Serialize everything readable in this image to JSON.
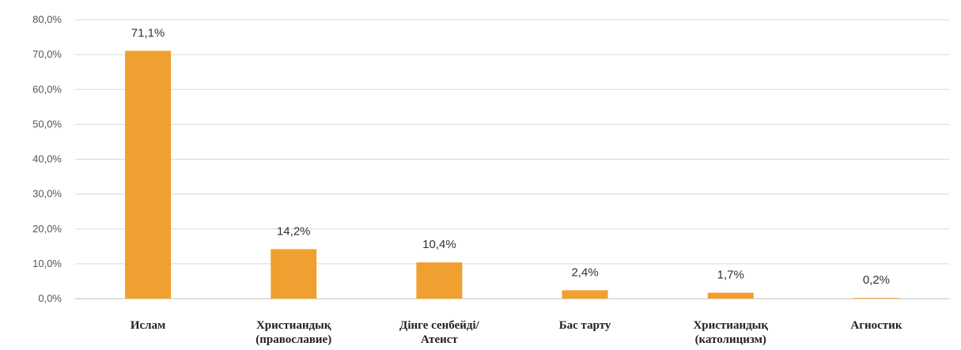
{
  "chart_data": {
    "type": "bar",
    "categories": [
      [
        "Ислам"
      ],
      [
        "Христиандық",
        "(православие)"
      ],
      [
        "Дінге сенбейді/",
        "Атеист"
      ],
      [
        "Бас тарту"
      ],
      [
        "Христиандық",
        "(католицизм)"
      ],
      [
        "Агностик"
      ]
    ],
    "values": [
      71.1,
      14.2,
      10.4,
      2.4,
      1.7,
      0.2
    ],
    "data_labels": [
      "71,1%",
      "14,2%",
      "10,4%",
      "2,4%",
      "1,7%",
      "0,2%"
    ],
    "ylim": [
      0,
      80
    ],
    "yticks": [
      0,
      10,
      20,
      30,
      40,
      50,
      60,
      70,
      80
    ],
    "ytick_labels": [
      "0,0%",
      "10,0%",
      "20,0%",
      "30,0%",
      "40,0%",
      "50,0%",
      "60,0%",
      "70,0%",
      "80,0%"
    ],
    "bar_color": "#F0A030",
    "grid": true,
    "title": "",
    "xlabel": "",
    "ylabel": ""
  }
}
